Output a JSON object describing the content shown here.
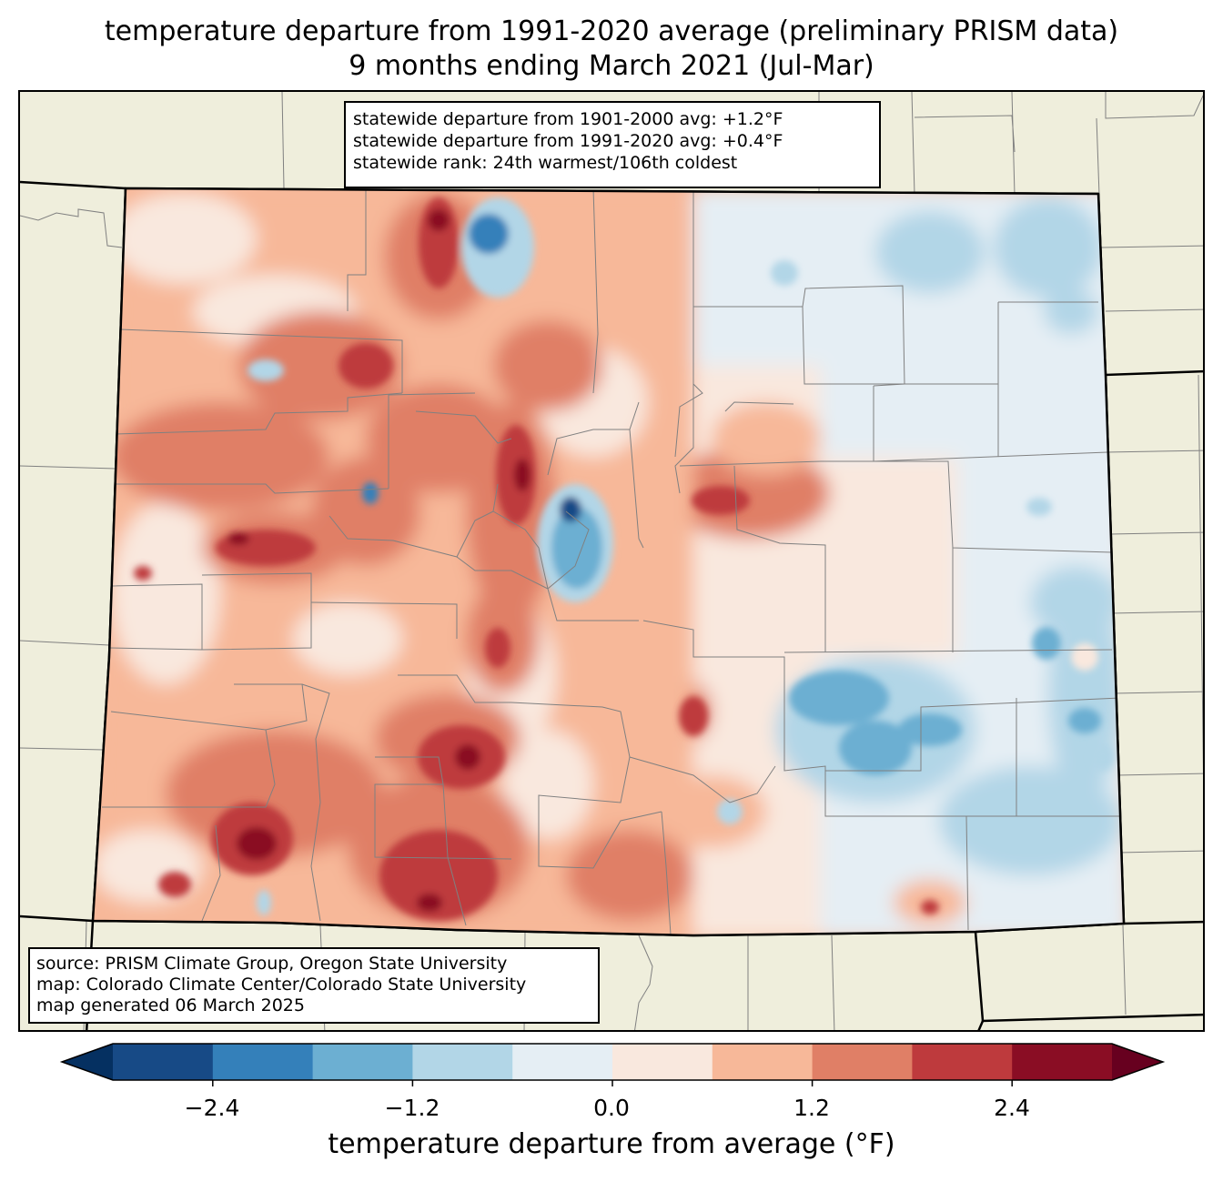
{
  "title": {
    "line1": "temperature departure from 1991-2020 average (preliminary PRISM data)",
    "line2": "9 months ending March 2021 (Jul-Mar)"
  },
  "stats_box": {
    "line1": "statewide departure from 1901-2000 avg: +1.2°F",
    "line2": "statewide departure from 1991-2020 avg: +0.4°F",
    "line3": "statewide rank: 24th warmest/106th coldest"
  },
  "source_box": {
    "line1": "source: PRISM Climate Group, Oregon State University",
    "line2": "map: Colorado Climate Center/Colorado State University",
    "line3": "map generated 06 March 2025"
  },
  "colorbar": {
    "label": "temperature departure from average (°F)",
    "ticks": [
      "−2.4",
      "−1.2",
      "0.0",
      "1.2",
      "2.4"
    ],
    "colors": [
      "#053061",
      "#174a86",
      "#3480ba",
      "#6cafd2",
      "#b2d6e7",
      "#e5eef4",
      "#f9e8de",
      "#f7b899",
      "#e07f66",
      "#be3a3d",
      "#8a0d24",
      "#67001f"
    ],
    "levels": [
      -3.0,
      -2.4,
      -1.8,
      -1.2,
      -0.6,
      0.0,
      0.6,
      1.2,
      1.8,
      2.4,
      3.0
    ]
  },
  "map": {
    "land_color": "#efeedc",
    "border_color": "#808080"
  }
}
